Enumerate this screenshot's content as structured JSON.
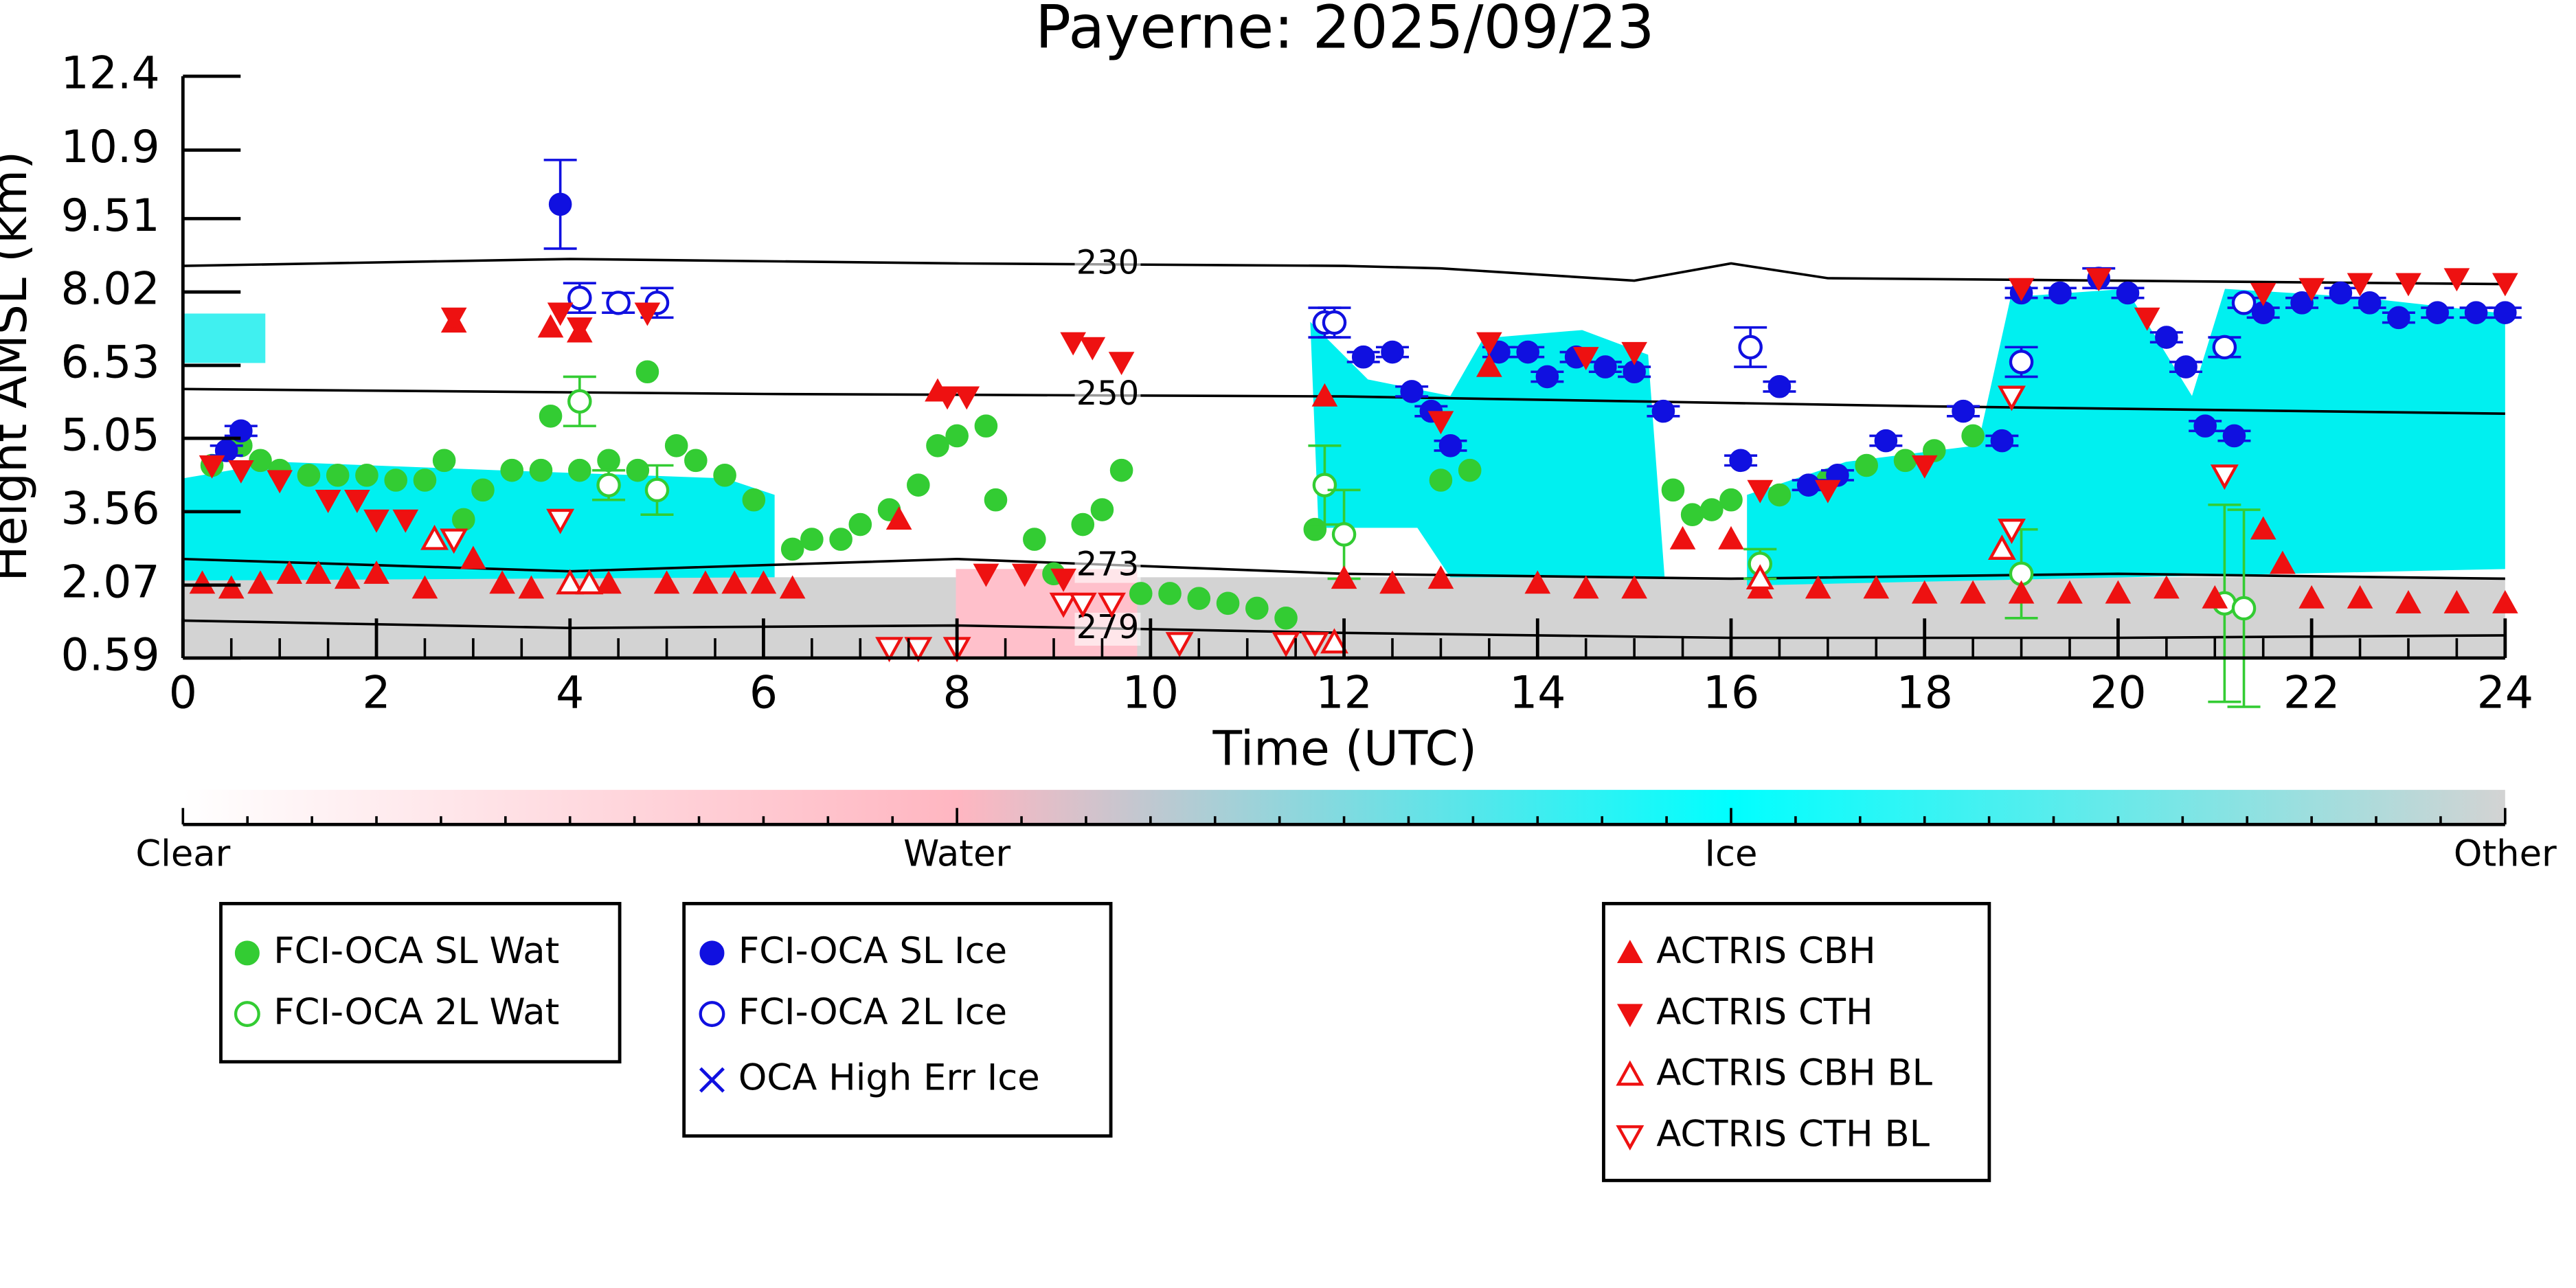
{
  "chart_data": {
    "type": "scatter",
    "title": "Payerne: 2025/09/23",
    "x_label": "Time (UTC)",
    "y_label": "Height AMSL (km)",
    "xlim": [
      0,
      24
    ],
    "xticks": [
      0,
      2,
      4,
      6,
      8,
      10,
      12,
      14,
      16,
      18,
      20,
      22,
      24
    ],
    "ylim": [
      0.59,
      12.4
    ],
    "yticks": [
      0.59,
      2.07,
      3.56,
      5.05,
      6.53,
      8.02,
      9.51,
      10.9,
      12.4
    ],
    "colorbar": {
      "labels": [
        "Clear",
        "Water",
        "Ice",
        "Other"
      ],
      "colors": [
        "#ffffff",
        "#ffb6c1",
        "#00ffff",
        "#d3d3d3"
      ]
    },
    "isotherms": [
      {
        "label": "230",
        "x": [
          0,
          4,
          8,
          12,
          13,
          15,
          16,
          17,
          20,
          24
        ],
        "values": [
          8.55,
          8.69,
          8.6,
          8.55,
          8.5,
          8.25,
          8.6,
          8.3,
          8.25,
          8.18
        ]
      },
      {
        "label": "250",
        "x": [
          0,
          6,
          12,
          18,
          24
        ],
        "values": [
          6.05,
          5.95,
          5.9,
          5.7,
          5.55
        ]
      },
      {
        "label": "273",
        "x": [
          0,
          4,
          8,
          12,
          16,
          20,
          24
        ],
        "values": [
          2.6,
          2.35,
          2.6,
          2.3,
          2.2,
          2.3,
          2.2
        ]
      },
      {
        "label": "279",
        "x": [
          0,
          4,
          8,
          12,
          16,
          20,
          24
        ],
        "values": [
          1.35,
          1.2,
          1.25,
          1.1,
          1.0,
          1.0,
          1.05
        ]
      }
    ],
    "series": [
      {
        "name": "FCI-OCA SL Wat",
        "color": "#33cc33",
        "marker": "circle",
        "legend": 0,
        "x": [
          0.3,
          0.6,
          0.8,
          1.0,
          1.3,
          1.6,
          1.9,
          2.2,
          2.5,
          2.7,
          2.9,
          3.1,
          3.4,
          3.7,
          3.8,
          4.1,
          4.4,
          4.7,
          4.8,
          5.1,
          5.3,
          5.6,
          5.9,
          6.3,
          6.5,
          6.8,
          7.0,
          7.3,
          7.6,
          7.8,
          8.0,
          8.3,
          8.4,
          8.8,
          9.0,
          9.3,
          9.5,
          9.7,
          9.9,
          10.2,
          10.5,
          10.8,
          11.1,
          11.4,
          11.7,
          13.0,
          13.3,
          15.4,
          15.6,
          15.8,
          16.0,
          16.5,
          17.0,
          17.4,
          17.8,
          18.1,
          18.5
        ],
        "values": [
          4.5,
          4.9,
          4.6,
          4.4,
          4.3,
          4.3,
          4.3,
          4.2,
          4.2,
          4.6,
          3.4,
          4.0,
          4.4,
          4.4,
          5.5,
          4.4,
          4.6,
          4.4,
          6.4,
          4.9,
          4.6,
          4.3,
          3.8,
          2.8,
          3.0,
          3.0,
          3.3,
          3.6,
          4.1,
          4.9,
          5.1,
          5.3,
          3.8,
          3.0,
          2.3,
          3.3,
          3.6,
          4.4,
          1.9,
          1.9,
          1.8,
          1.7,
          1.6,
          1.4,
          3.2,
          4.2,
          4.4,
          4.0,
          3.5,
          3.6,
          3.8,
          3.9,
          4.2,
          4.5,
          4.6,
          4.8,
          5.1
        ]
      },
      {
        "name": "FCI-OCA 2L Wat",
        "color": "#33cc33",
        "marker": "circle-open",
        "legend": 0,
        "x": [
          4.1,
          4.4,
          4.9,
          11.8,
          12.0,
          16.3,
          19.0,
          21.1,
          21.3
        ],
        "values": [
          5.8,
          4.1,
          4.0,
          4.1,
          3.1,
          2.5,
          2.3,
          1.7,
          1.6
        ],
        "errors": [
          0.5,
          0.3,
          0.5,
          0.8,
          0.9,
          0.3,
          0.9,
          2.0,
          2.0
        ]
      },
      {
        "name": "FCI-OCA SL Ice",
        "color": "#1010e0",
        "marker": "circle",
        "legend": 1,
        "x": [
          0.45,
          0.6,
          3.9,
          12.2,
          12.5,
          12.7,
          12.9,
          13.1,
          13.6,
          13.9,
          14.1,
          14.4,
          14.7,
          15.0,
          15.3,
          16.1,
          16.5,
          16.8,
          17.1,
          17.6,
          18.4,
          18.8,
          19.0,
          19.4,
          19.8,
          20.1,
          20.5,
          20.7,
          20.9,
          21.2,
          21.5,
          21.9,
          22.3,
          22.6,
          22.9,
          23.3,
          23.7,
          24.0
        ],
        "values": [
          4.8,
          5.2,
          9.8,
          6.7,
          6.8,
          6.0,
          5.6,
          4.9,
          6.8,
          6.8,
          6.3,
          6.7,
          6.5,
          6.4,
          5.6,
          4.6,
          6.1,
          4.1,
          4.3,
          5.0,
          5.6,
          5.0,
          8.0,
          8.0,
          8.3,
          8.0,
          7.1,
          6.5,
          5.3,
          5.1,
          7.6,
          7.8,
          8.0,
          7.8,
          7.5,
          7.6,
          7.6,
          7.6
        ],
        "errors": [
          0.1,
          0.1,
          0.9,
          0.1,
          0.1,
          0.1,
          0.1,
          0.1,
          0.1,
          0.1,
          0.1,
          0.1,
          0.1,
          0.1,
          0.1,
          0.1,
          0.1,
          0.1,
          0.1,
          0.1,
          0.1,
          0.1,
          0.1,
          0.1,
          0.2,
          0.1,
          0.1,
          0.1,
          0.1,
          0.1,
          0.1,
          0.1,
          0.1,
          0.1,
          0.1,
          0.1,
          0.1,
          0.1
        ]
      },
      {
        "name": "FCI-OCA 2L Ice",
        "color": "#1010e0",
        "marker": "circle-open",
        "legend": 1,
        "x": [
          4.1,
          4.5,
          4.9,
          11.8,
          11.9,
          16.2,
          19.0,
          21.1,
          21.3
        ],
        "values": [
          7.9,
          7.8,
          7.8,
          7.4,
          7.4,
          6.9,
          6.6,
          6.9,
          7.8
        ],
        "errors": [
          0.3,
          0.2,
          0.3,
          0.3,
          0.3,
          0.4,
          0.3,
          0.2,
          0.1
        ]
      },
      {
        "name": "OCA High Err Ice",
        "color": "#1010e0",
        "marker": "cross",
        "legend": 1,
        "x": [],
        "values": []
      },
      {
        "name": "ACTRIS CBH",
        "color": "#ee1111",
        "marker": "triangle-up",
        "legend": 2,
        "x": [
          0.2,
          0.5,
          0.8,
          1.1,
          1.4,
          1.7,
          2.0,
          2.5,
          2.8,
          3.0,
          3.3,
          3.6,
          3.8,
          4.1,
          4.4,
          5.0,
          5.4,
          5.7,
          6.0,
          6.3,
          7.4,
          7.8,
          11.8,
          12.0,
          12.5,
          13.0,
          13.5,
          14.0,
          14.5,
          15.0,
          15.5,
          16.0,
          16.3,
          16.9,
          17.5,
          18.0,
          18.5,
          19.0,
          19.5,
          20.0,
          20.5,
          21.0,
          21.5,
          21.7,
          22.0,
          22.5,
          23.0,
          23.5,
          24.0
        ],
        "values": [
          2.1,
          2.0,
          2.1,
          2.3,
          2.3,
          2.2,
          2.3,
          2.0,
          7.4,
          2.6,
          2.1,
          2.0,
          7.3,
          7.2,
          2.1,
          2.1,
          2.1,
          2.1,
          2.1,
          2.0,
          3.4,
          6.0,
          5.9,
          2.2,
          2.1,
          2.2,
          6.5,
          2.1,
          2.0,
          2.0,
          3.0,
          3.0,
          2.0,
          2.0,
          2.0,
          1.9,
          1.9,
          1.9,
          1.9,
          1.9,
          2.0,
          1.8,
          3.2,
          2.5,
          1.8,
          1.8,
          1.7,
          1.7,
          1.7
        ]
      },
      {
        "name": "ACTRIS CTH",
        "color": "#ee1111",
        "marker": "triangle-down",
        "legend": 2,
        "x": [
          0.3,
          0.6,
          1.0,
          1.5,
          1.8,
          2.0,
          2.3,
          2.8,
          3.9,
          4.1,
          4.8,
          7.9,
          8.1,
          8.3,
          8.7,
          9.1,
          9.2,
          9.4,
          9.7,
          13.0,
          13.5,
          14.5,
          15.0,
          16.3,
          17.0,
          18.0,
          19.0,
          19.8,
          20.3,
          21.5,
          22.0,
          22.5,
          23.0,
          23.5,
          24.0
        ],
        "values": [
          4.5,
          4.4,
          4.2,
          3.8,
          3.8,
          3.4,
          3.4,
          7.5,
          7.6,
          7.3,
          7.6,
          5.9,
          5.9,
          2.3,
          2.3,
          2.2,
          7.0,
          6.9,
          6.6,
          5.4,
          7.0,
          6.7,
          6.8,
          4.0,
          4.0,
          4.5,
          8.1,
          8.3,
          7.5,
          8.0,
          8.1,
          8.2,
          8.2,
          8.3,
          8.2
        ]
      },
      {
        "name": "ACTRIS CBH BL",
        "color": "#ee1111",
        "marker": "triangle-up-open",
        "legend": 2,
        "x": [
          2.6,
          4.0,
          4.2,
          11.9,
          16.3,
          18.8
        ],
        "values": [
          3.0,
          2.1,
          2.1,
          0.9,
          2.2,
          2.8
        ]
      },
      {
        "name": "ACTRIS CTH BL",
        "color": "#ee1111",
        "marker": "triangle-down-open",
        "legend": 2,
        "x": [
          2.8,
          3.9,
          7.3,
          7.6,
          8.0,
          9.1,
          9.3,
          9.6,
          10.3,
          11.4,
          11.7,
          18.9,
          18.9,
          21.1
        ],
        "values": [
          3.0,
          3.4,
          0.8,
          0.8,
          0.8,
          1.7,
          1.7,
          1.7,
          0.9,
          0.9,
          0.9,
          3.2,
          5.9,
          4.3
        ]
      }
    ]
  }
}
